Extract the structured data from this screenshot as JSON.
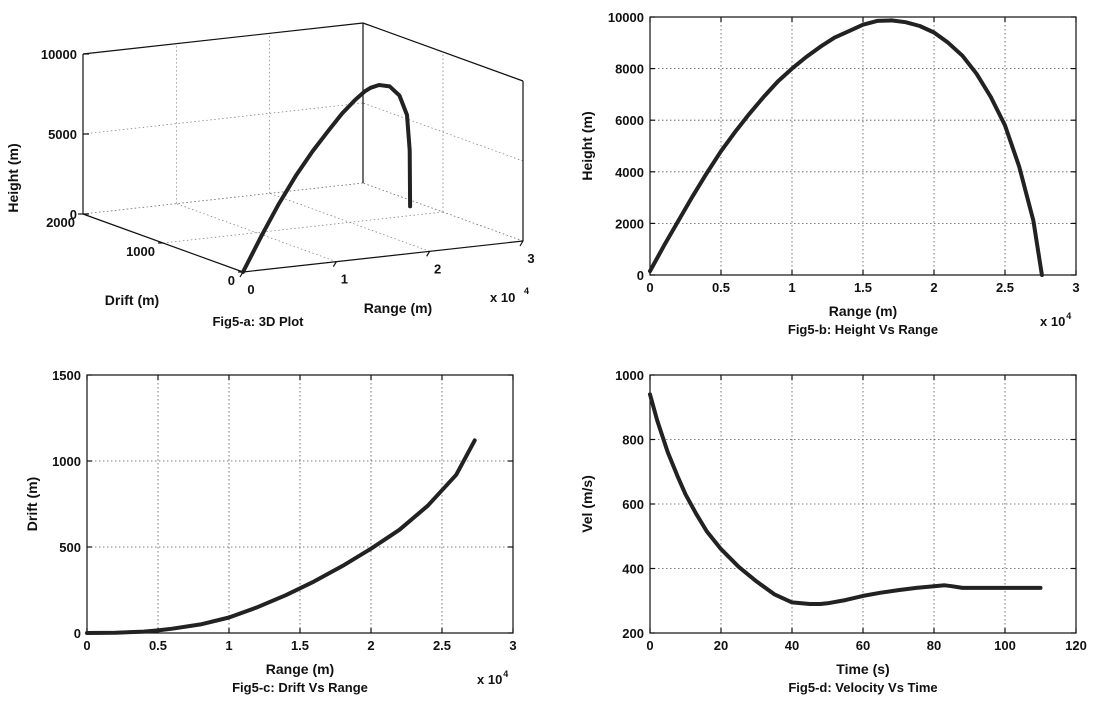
{
  "chart_data": [
    {
      "id": "fig5a",
      "type": "line3d",
      "caption": "Fig5-a: 3D Plot",
      "xlabel": "Range (m)",
      "ylabel": "Drift  (m)",
      "zlabel": "Height (m)",
      "x_exponent_label": "x 10",
      "x_exponent": "4",
      "x_ticks": [
        {
          "v": 0,
          "t": "0"
        },
        {
          "v": 10000,
          "t": "1"
        },
        {
          "v": 20000,
          "t": "2"
        },
        {
          "v": 30000,
          "t": "3"
        }
      ],
      "y_ticks": [
        {
          "v": 0,
          "t": "0"
        },
        {
          "v": 1000,
          "t": "1000"
        },
        {
          "v": 2000,
          "t": "2000"
        }
      ],
      "z_ticks": [
        {
          "v": 0,
          "t": "0"
        },
        {
          "v": 5000,
          "t": "5000"
        },
        {
          "v": 10000,
          "t": "10000"
        }
      ],
      "xlim": [
        0,
        30000
      ],
      "ylim": [
        0,
        2000
      ],
      "zlim": [
        0,
        10000
      ],
      "points": [
        [
          0,
          0,
          0
        ],
        [
          2000,
          5,
          2100
        ],
        [
          4000,
          20,
          3950
        ],
        [
          6000,
          40,
          5550
        ],
        [
          8000,
          65,
          6900
        ],
        [
          10000,
          100,
          8000
        ],
        [
          12000,
          160,
          8850
        ],
        [
          14000,
          230,
          9450
        ],
        [
          15500,
          290,
          9750
        ],
        [
          16500,
          330,
          9850
        ],
        [
          18000,
          400,
          9800
        ],
        [
          20000,
          500,
          9400
        ],
        [
          22000,
          610,
          8500
        ],
        [
          24000,
          750,
          6900
        ],
        [
          26000,
          950,
          4200
        ],
        [
          27500,
          1120,
          300
        ]
      ]
    },
    {
      "id": "fig5b",
      "type": "line",
      "caption": "Fig5-b: Height Vs Range",
      "xlabel": "Range (m)",
      "ylabel": "Height (m)",
      "x_exponent_label": "x 10",
      "x_exponent": "4",
      "xlim": [
        0,
        30000
      ],
      "ylim": [
        0,
        10000
      ],
      "x_ticks": [
        {
          "v": 0,
          "t": "0"
        },
        {
          "v": 5000,
          "t": "0.5"
        },
        {
          "v": 10000,
          "t": "1"
        },
        {
          "v": 15000,
          "t": "1.5"
        },
        {
          "v": 20000,
          "t": "2"
        },
        {
          "v": 25000,
          "t": "2.5"
        },
        {
          "v": 30000,
          "t": "3"
        }
      ],
      "y_ticks": [
        {
          "v": 0,
          "t": "0"
        },
        {
          "v": 2000,
          "t": "2000"
        },
        {
          "v": 4000,
          "t": "4000"
        },
        {
          "v": 6000,
          "t": "6000"
        },
        {
          "v": 8000,
          "t": "8000"
        },
        {
          "v": 10000,
          "t": "10000"
        }
      ],
      "grid": true,
      "x": [
        0,
        1000,
        2000,
        3000,
        4000,
        5000,
        6000,
        7000,
        8000,
        9000,
        10000,
        11000,
        12000,
        13000,
        14000,
        15000,
        16000,
        17000,
        18000,
        19000,
        20000,
        21000,
        22000,
        23000,
        24000,
        25000,
        26000,
        27000,
        27600
      ],
      "y": [
        150,
        1150,
        2100,
        3050,
        3950,
        4800,
        5550,
        6250,
        6900,
        7500,
        8000,
        8450,
        8850,
        9200,
        9450,
        9700,
        9850,
        9870,
        9800,
        9650,
        9400,
        9000,
        8500,
        7800,
        6900,
        5800,
        4200,
        2100,
        0
      ]
    },
    {
      "id": "fig5c",
      "type": "line",
      "caption": "Fig5-c: Drift Vs Range",
      "xlabel": "Range (m)",
      "ylabel": "Drift (m)",
      "x_exponent_label": "x 10",
      "x_exponent": "4",
      "xlim": [
        0,
        30000
      ],
      "ylim": [
        0,
        1500
      ],
      "x_ticks": [
        {
          "v": 0,
          "t": "0"
        },
        {
          "v": 5000,
          "t": "0.5"
        },
        {
          "v": 10000,
          "t": "1"
        },
        {
          "v": 15000,
          "t": "1.5"
        },
        {
          "v": 20000,
          "t": "2"
        },
        {
          "v": 25000,
          "t": "2.5"
        },
        {
          "v": 30000,
          "t": "3"
        }
      ],
      "y_ticks": [
        {
          "v": 0,
          "t": "0"
        },
        {
          "v": 500,
          "t": "500"
        },
        {
          "v": 1000,
          "t": "1000"
        },
        {
          "v": 1500,
          "t": "1500"
        }
      ],
      "grid": true,
      "x": [
        0,
        2000,
        4000,
        5000,
        6000,
        8000,
        10000,
        12000,
        14000,
        16000,
        18000,
        20000,
        22000,
        24000,
        26000,
        27300
      ],
      "y": [
        0,
        2,
        8,
        15,
        25,
        50,
        90,
        150,
        220,
        300,
        390,
        490,
        600,
        740,
        920,
        1120
      ]
    },
    {
      "id": "fig5d",
      "type": "line",
      "caption": "Fig5-d: Velocity Vs Time",
      "xlabel": "Time (s)",
      "ylabel": "Vel (m/s)",
      "xlim": [
        0,
        120
      ],
      "ylim": [
        200,
        1000
      ],
      "x_ticks": [
        {
          "v": 0,
          "t": "0"
        },
        {
          "v": 20,
          "t": "20"
        },
        {
          "v": 40,
          "t": "40"
        },
        {
          "v": 60,
          "t": "60"
        },
        {
          "v": 80,
          "t": "80"
        },
        {
          "v": 100,
          "t": "100"
        },
        {
          "v": 120,
          "t": "120"
        }
      ],
      "y_ticks": [
        {
          "v": 200,
          "t": "200"
        },
        {
          "v": 400,
          "t": "400"
        },
        {
          "v": 600,
          "t": "600"
        },
        {
          "v": 800,
          "t": "800"
        },
        {
          "v": 1000,
          "t": "1000"
        }
      ],
      "grid": true,
      "x": [
        0,
        2,
        5,
        8,
        10,
        13,
        16,
        20,
        25,
        30,
        35,
        40,
        45,
        48,
        50,
        55,
        60,
        65,
        70,
        75,
        80,
        83,
        85,
        88,
        90,
        95,
        100,
        105,
        110
      ],
      "y": [
        940,
        860,
        760,
        680,
        630,
        570,
        515,
        460,
        405,
        360,
        320,
        295,
        290,
        290,
        292,
        302,
        315,
        325,
        333,
        340,
        345,
        348,
        345,
        340,
        340,
        340,
        340,
        340,
        340
      ]
    }
  ]
}
